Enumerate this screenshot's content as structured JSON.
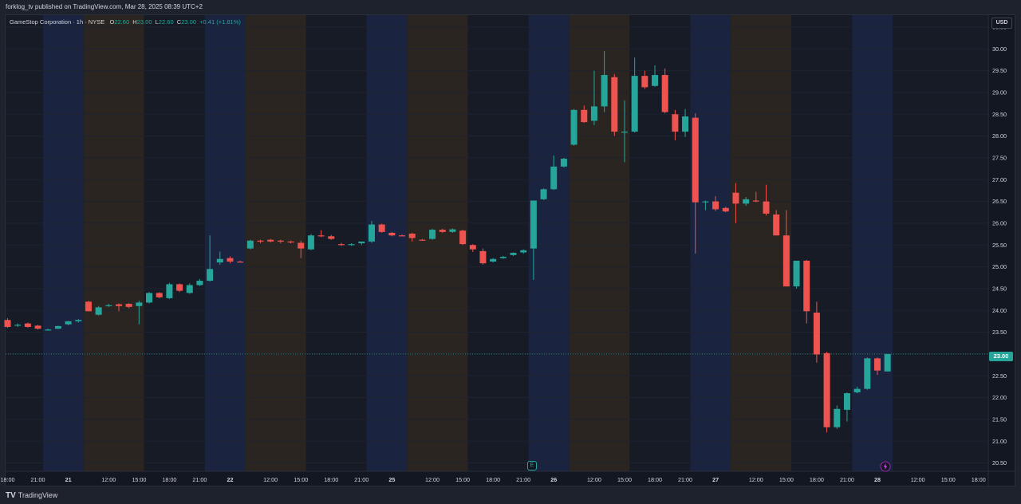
{
  "header": {
    "published_text": "forklog_tv published on TradingView.com, Mar 28, 2025 08:39 UTC+2"
  },
  "legend": {
    "symbol": "GameStop Corporation · 1h · NYSE",
    "open_label": "O",
    "open": "22.60",
    "high_label": "H",
    "high": "23.00",
    "low_label": "L",
    "low": "22.60",
    "close_label": "C",
    "close": "23.00",
    "change": "+0.41 (+1.81%)"
  },
  "currency": "USD",
  "last_price_tag": "23.00",
  "footer": {
    "brand": "TradingView",
    "logo": "TV"
  },
  "badges": {
    "earnings": "E",
    "alert_icon": "lightning-icon"
  },
  "colors": {
    "up": "#26a69a",
    "down": "#ef5350",
    "session_blue": "#1a2440",
    "session_brown": "#2a2520",
    "session_dark": "#171b26",
    "grid": "#1f2330",
    "text": "#d1d4dc"
  },
  "chart_data": {
    "type": "candlestick",
    "interval": "1h",
    "symbol": "GME",
    "ylim": [
      20.4,
      30.7
    ],
    "y_ticks": [
      "30.50",
      "30.00",
      "29.50",
      "29.00",
      "28.50",
      "28.00",
      "27.50",
      "27.00",
      "26.50",
      "26.00",
      "25.50",
      "25.00",
      "24.50",
      "24.00",
      "23.50",
      "23.00",
      "22.50",
      "22.00",
      "21.50",
      "21.00",
      "20.50"
    ],
    "x_ticks": [
      {
        "label": "18:00",
        "i": 0.0
      },
      {
        "label": "21:00",
        "i": 3.0
      },
      {
        "label": "21",
        "i": 6.0,
        "bold": true
      },
      {
        "label": "12:00",
        "i": 10.0
      },
      {
        "label": "15:00",
        "i": 13.0
      },
      {
        "label": "18:00",
        "i": 16.0
      },
      {
        "label": "21:00",
        "i": 19.0
      },
      {
        "label": "22",
        "i": 22.0,
        "bold": true
      },
      {
        "label": "12:00",
        "i": 26.0
      },
      {
        "label": "15:00",
        "i": 29.0
      },
      {
        "label": "18:00",
        "i": 32.0
      },
      {
        "label": "21:00",
        "i": 35.0
      },
      {
        "label": "25",
        "i": 38.0,
        "bold": true
      },
      {
        "label": "12:00",
        "i": 42.0
      },
      {
        "label": "15:00",
        "i": 45.0
      },
      {
        "label": "18:00",
        "i": 48.0
      },
      {
        "label": "21:00",
        "i": 51.0
      },
      {
        "label": "26",
        "i": 54.0,
        "bold": true
      },
      {
        "label": "12:00",
        "i": 58.0
      },
      {
        "label": "15:00",
        "i": 61.0
      },
      {
        "label": "18:00",
        "i": 64.0
      },
      {
        "label": "21:00",
        "i": 67.0
      },
      {
        "label": "27",
        "i": 70.0,
        "bold": true
      },
      {
        "label": "12:00",
        "i": 74.0
      },
      {
        "label": "15:00",
        "i": 77.0
      },
      {
        "label": "18:00",
        "i": 80.0
      },
      {
        "label": "21:00",
        "i": 83.0
      },
      {
        "label": "28",
        "i": 86.0,
        "bold": true
      },
      {
        "label": "12:00",
        "i": 90.0
      },
      {
        "label": "15:00",
        "i": 93.0
      },
      {
        "label": "18:00",
        "i": 96.0
      }
    ],
    "sessions": [
      {
        "from": -0.5,
        "to": 3.5,
        "kind": "dark"
      },
      {
        "from": 3.5,
        "to": 7.5,
        "kind": "blue"
      },
      {
        "from": 7.5,
        "to": 13.5,
        "kind": "brown"
      },
      {
        "from": 13.5,
        "to": 19.5,
        "kind": "dark"
      },
      {
        "from": 19.5,
        "to": 23.5,
        "kind": "blue"
      },
      {
        "from": 23.5,
        "to": 29.5,
        "kind": "brown"
      },
      {
        "from": 29.5,
        "to": 35.5,
        "kind": "dark"
      },
      {
        "from": 35.5,
        "to": 39.5,
        "kind": "blue"
      },
      {
        "from": 39.5,
        "to": 45.5,
        "kind": "brown"
      },
      {
        "from": 45.5,
        "to": 51.5,
        "kind": "dark"
      },
      {
        "from": 51.5,
        "to": 55.5,
        "kind": "blue"
      },
      {
        "from": 55.5,
        "to": 61.5,
        "kind": "brown"
      },
      {
        "from": 61.5,
        "to": 67.5,
        "kind": "dark"
      },
      {
        "from": 67.5,
        "to": 71.5,
        "kind": "blue"
      },
      {
        "from": 71.5,
        "to": 77.5,
        "kind": "brown"
      },
      {
        "from": 77.5,
        "to": 83.5,
        "kind": "dark"
      },
      {
        "from": 83.5,
        "to": 87.5,
        "kind": "blue"
      },
      {
        "from": 87.5,
        "to": 97.7,
        "kind": "dark"
      }
    ],
    "candles": [
      [
        23.78,
        23.82,
        23.6,
        23.62
      ],
      [
        23.65,
        23.7,
        23.62,
        23.67
      ],
      [
        23.7,
        23.72,
        23.6,
        23.62
      ],
      [
        23.65,
        23.67,
        23.56,
        23.58
      ],
      [
        23.55,
        23.58,
        23.54,
        23.56
      ],
      [
        23.58,
        23.65,
        23.57,
        23.64
      ],
      [
        23.68,
        23.76,
        23.66,
        23.75
      ],
      [
        23.75,
        23.8,
        23.72,
        23.78
      ],
      [
        24.2,
        24.22,
        23.98,
        23.98
      ],
      [
        23.9,
        24.1,
        23.88,
        24.07
      ],
      [
        24.1,
        24.15,
        24.08,
        24.12
      ],
      [
        24.14,
        24.16,
        23.98,
        24.1
      ],
      [
        24.15,
        24.17,
        24.05,
        24.08
      ],
      [
        24.1,
        24.22,
        23.68,
        24.18
      ],
      [
        24.18,
        24.42,
        24.16,
        24.4
      ],
      [
        24.4,
        24.42,
        24.28,
        24.3
      ],
      [
        24.28,
        24.63,
        24.26,
        24.6
      ],
      [
        24.6,
        24.62,
        24.42,
        24.45
      ],
      [
        24.4,
        24.62,
        24.38,
        24.58
      ],
      [
        24.58,
        24.72,
        24.56,
        24.68
      ],
      [
        24.68,
        25.72,
        24.66,
        24.95
      ],
      [
        25.1,
        25.35,
        25.05,
        25.18
      ],
      [
        25.2,
        25.24,
        25.08,
        25.12
      ],
      [
        25.12,
        25.14,
        25.1,
        25.11
      ],
      [
        25.42,
        25.62,
        25.4,
        25.6
      ],
      [
        25.6,
        25.62,
        25.54,
        25.58
      ],
      [
        25.62,
        25.64,
        25.56,
        25.58
      ],
      [
        25.6,
        25.62,
        25.54,
        25.58
      ],
      [
        25.58,
        25.6,
        25.54,
        25.56
      ],
      [
        25.55,
        25.6,
        25.2,
        25.42
      ],
      [
        25.4,
        25.75,
        25.38,
        25.72
      ],
      [
        25.72,
        25.84,
        25.68,
        25.7
      ],
      [
        25.7,
        25.73,
        25.62,
        25.64
      ],
      [
        25.52,
        25.55,
        25.48,
        25.5
      ],
      [
        25.5,
        25.54,
        25.48,
        25.52
      ],
      [
        25.54,
        25.56,
        25.5,
        25.58
      ],
      [
        25.58,
        26.05,
        25.55,
        25.97
      ],
      [
        25.97,
        25.99,
        25.78,
        25.8
      ],
      [
        25.78,
        25.8,
        25.7,
        25.72
      ],
      [
        25.72,
        25.74,
        25.7,
        25.71
      ],
      [
        25.76,
        25.78,
        25.58,
        25.66
      ],
      [
        25.62,
        25.64,
        25.6,
        25.61
      ],
      [
        25.64,
        25.87,
        25.62,
        25.85
      ],
      [
        25.85,
        25.87,
        25.78,
        25.8
      ],
      [
        25.8,
        25.88,
        25.78,
        25.86
      ],
      [
        25.83,
        25.85,
        25.5,
        25.52
      ],
      [
        25.5,
        25.52,
        25.34,
        25.4
      ],
      [
        25.36,
        25.42,
        25.05,
        25.08
      ],
      [
        25.12,
        25.2,
        25.1,
        25.18
      ],
      [
        25.2,
        25.25,
        25.18,
        25.23
      ],
      [
        25.27,
        25.33,
        25.25,
        25.32
      ],
      [
        25.33,
        25.4,
        25.3,
        25.38
      ],
      [
        25.42,
        26.5,
        24.7,
        26.52
      ],
      [
        26.55,
        26.8,
        26.53,
        26.78
      ],
      [
        26.78,
        27.55,
        26.76,
        27.3
      ],
      [
        27.3,
        27.5,
        27.28,
        27.48
      ],
      [
        27.8,
        28.62,
        27.78,
        28.6
      ],
      [
        28.6,
        28.7,
        28.3,
        28.32
      ],
      [
        28.35,
        29.5,
        28.25,
        28.68
      ],
      [
        28.68,
        29.95,
        28.55,
        29.4
      ],
      [
        29.35,
        29.42,
        28.0,
        28.1
      ],
      [
        28.1,
        28.82,
        27.4,
        28.1
      ],
      [
        28.1,
        29.8,
        28.08,
        29.38
      ],
      [
        29.38,
        29.5,
        29.08,
        29.12
      ],
      [
        29.15,
        29.62,
        29.13,
        29.4
      ],
      [
        29.4,
        29.55,
        28.52,
        28.55
      ],
      [
        28.5,
        28.6,
        27.9,
        28.1
      ],
      [
        28.1,
        28.62,
        27.98,
        28.45
      ],
      [
        28.42,
        28.52,
        25.3,
        26.48
      ],
      [
        26.48,
        26.52,
        26.3,
        26.5
      ],
      [
        26.5,
        26.62,
        26.28,
        26.32
      ],
      [
        26.35,
        26.38,
        26.25,
        26.27
      ],
      [
        26.7,
        26.92,
        26.0,
        26.45
      ],
      [
        26.45,
        26.6,
        26.4,
        26.55
      ],
      [
        26.52,
        26.72,
        26.48,
        26.5
      ],
      [
        26.5,
        26.88,
        26.18,
        26.22
      ],
      [
        26.2,
        26.3,
        25.72,
        25.72
      ],
      [
        25.72,
        26.3,
        24.55,
        24.55
      ],
      [
        24.55,
        25.12,
        24.5,
        25.14
      ],
      [
        25.14,
        25.16,
        23.7,
        23.98
      ],
      [
        23.95,
        24.2,
        22.8,
        22.99
      ],
      [
        23.02,
        23.05,
        21.2,
        21.32
      ],
      [
        21.32,
        21.82,
        21.28,
        21.74
      ],
      [
        21.72,
        22.12,
        21.45,
        22.1
      ],
      [
        22.12,
        22.25,
        22.1,
        22.2
      ],
      [
        22.2,
        22.92,
        22.18,
        22.9
      ],
      [
        22.9,
        22.92,
        22.52,
        22.62
      ],
      [
        22.6,
        23.0,
        22.6,
        23.0
      ]
    ],
    "last_price": 23.0
  }
}
